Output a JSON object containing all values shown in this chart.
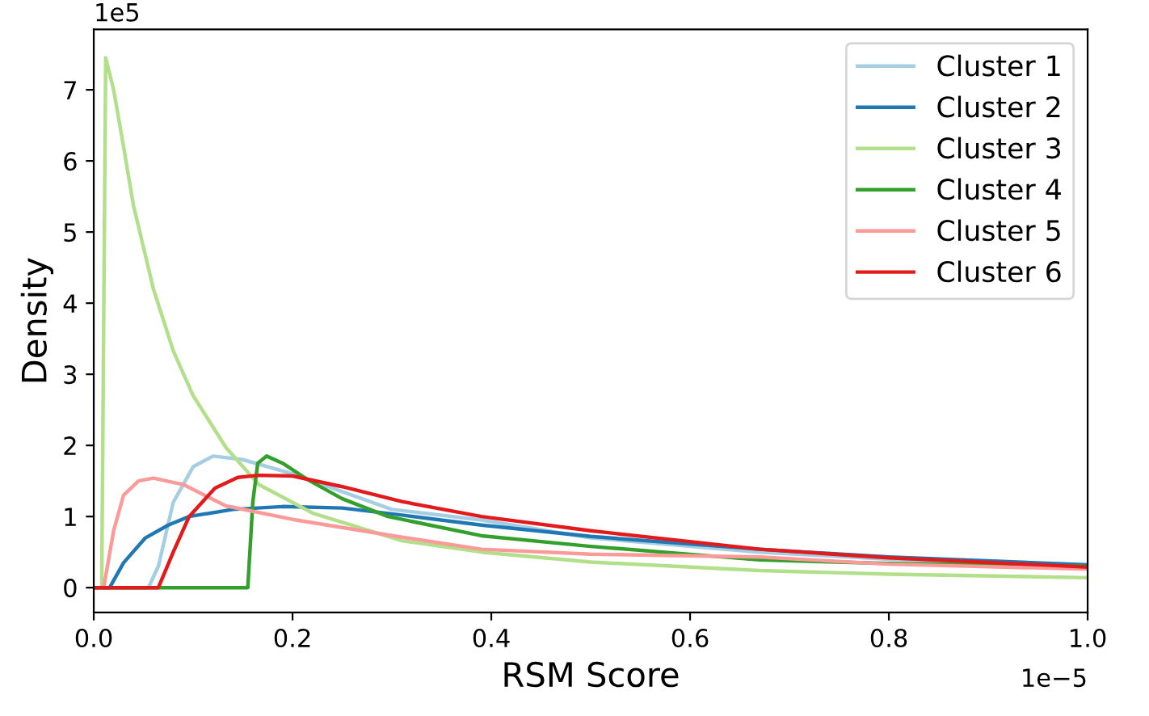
{
  "chart_data": {
    "type": "line",
    "xlabel": "RSM Score",
    "ylabel": "Density",
    "xlim": [
      0,
      1.0
    ],
    "ylim": [
      -0.35,
      7.85
    ],
    "xticks": [
      {
        "value": 0,
        "label": "0.0"
      },
      0.2,
      0.4,
      0.6,
      0.8,
      {
        "value": 1,
        "label": "1.0"
      }
    ],
    "yticks": [
      0,
      1,
      2,
      3,
      4,
      5,
      6,
      7
    ],
    "annotations": [
      "1e5",
      "1e−5"
    ],
    "legend": "top right",
    "grid": false,
    "series": [
      {
        "name": "Cluster 1",
        "color": "#a6cee3",
        "x": [
          0,
          0.055,
          0.065,
          0.08,
          0.1,
          0.12,
          0.15,
          0.2,
          0.25,
          0.3,
          0.39,
          0.5,
          0.67,
          0.8,
          1.0
        ],
        "values": [
          0,
          0,
          0.3,
          1.2,
          1.7,
          1.85,
          1.8,
          1.6,
          1.35,
          1.1,
          0.95,
          0.7,
          0.5,
          0.4,
          0.3
        ]
      },
      {
        "name": "Cluster 2",
        "color": "#1f78b4",
        "x": [
          0,
          0.016,
          0.03,
          0.052,
          0.075,
          0.096,
          0.14,
          0.19,
          0.25,
          0.31,
          0.39,
          0.5,
          0.67,
          0.8,
          1.0
        ],
        "values": [
          0,
          0,
          0.35,
          0.7,
          0.88,
          1.0,
          1.1,
          1.14,
          1.12,
          1.02,
          0.88,
          0.72,
          0.54,
          0.43,
          0.32
        ]
      },
      {
        "name": "Cluster 3",
        "color": "#b2df8a",
        "x": [
          0,
          0.008,
          0.012,
          0.02,
          0.03,
          0.04,
          0.06,
          0.08,
          0.1,
          0.133,
          0.166,
          0.22,
          0.31,
          0.39,
          0.5,
          0.67,
          0.8,
          1.0
        ],
        "values": [
          0,
          0,
          7.45,
          7.0,
          6.2,
          5.37,
          4.2,
          3.33,
          2.7,
          1.97,
          1.45,
          1.05,
          0.66,
          0.5,
          0.36,
          0.24,
          0.19,
          0.14
        ]
      },
      {
        "name": "Cluster 4",
        "color": "#33a02c",
        "x": [
          0,
          0.155,
          0.16,
          0.165,
          0.174,
          0.19,
          0.215,
          0.25,
          0.296,
          0.31,
          0.39,
          0.5,
          0.67,
          0.8,
          1.0
        ],
        "values": [
          0,
          0,
          1.2,
          1.75,
          1.85,
          1.75,
          1.52,
          1.25,
          1.0,
          0.96,
          0.73,
          0.58,
          0.39,
          0.34,
          0.3
        ]
      },
      {
        "name": "Cluster 5",
        "color": "#fb9a99",
        "x": [
          0,
          0.01,
          0.02,
          0.03,
          0.045,
          0.06,
          0.09,
          0.133,
          0.2,
          0.31,
          0.39,
          0.5,
          0.67,
          0.8,
          1.0
        ],
        "values": [
          0,
          0,
          0.8,
          1.3,
          1.5,
          1.54,
          1.45,
          1.15,
          0.96,
          0.71,
          0.54,
          0.47,
          0.43,
          0.33,
          0.26
        ]
      },
      {
        "name": "Cluster 6",
        "color": "#e31a1c",
        "x": [
          0,
          0.065,
          0.08,
          0.096,
          0.122,
          0.145,
          0.166,
          0.2,
          0.25,
          0.31,
          0.39,
          0.5,
          0.67,
          0.8,
          1.0
        ],
        "values": [
          0,
          0,
          0.5,
          1.0,
          1.4,
          1.55,
          1.58,
          1.57,
          1.42,
          1.21,
          1.0,
          0.8,
          0.54,
          0.42,
          0.29
        ]
      }
    ]
  }
}
